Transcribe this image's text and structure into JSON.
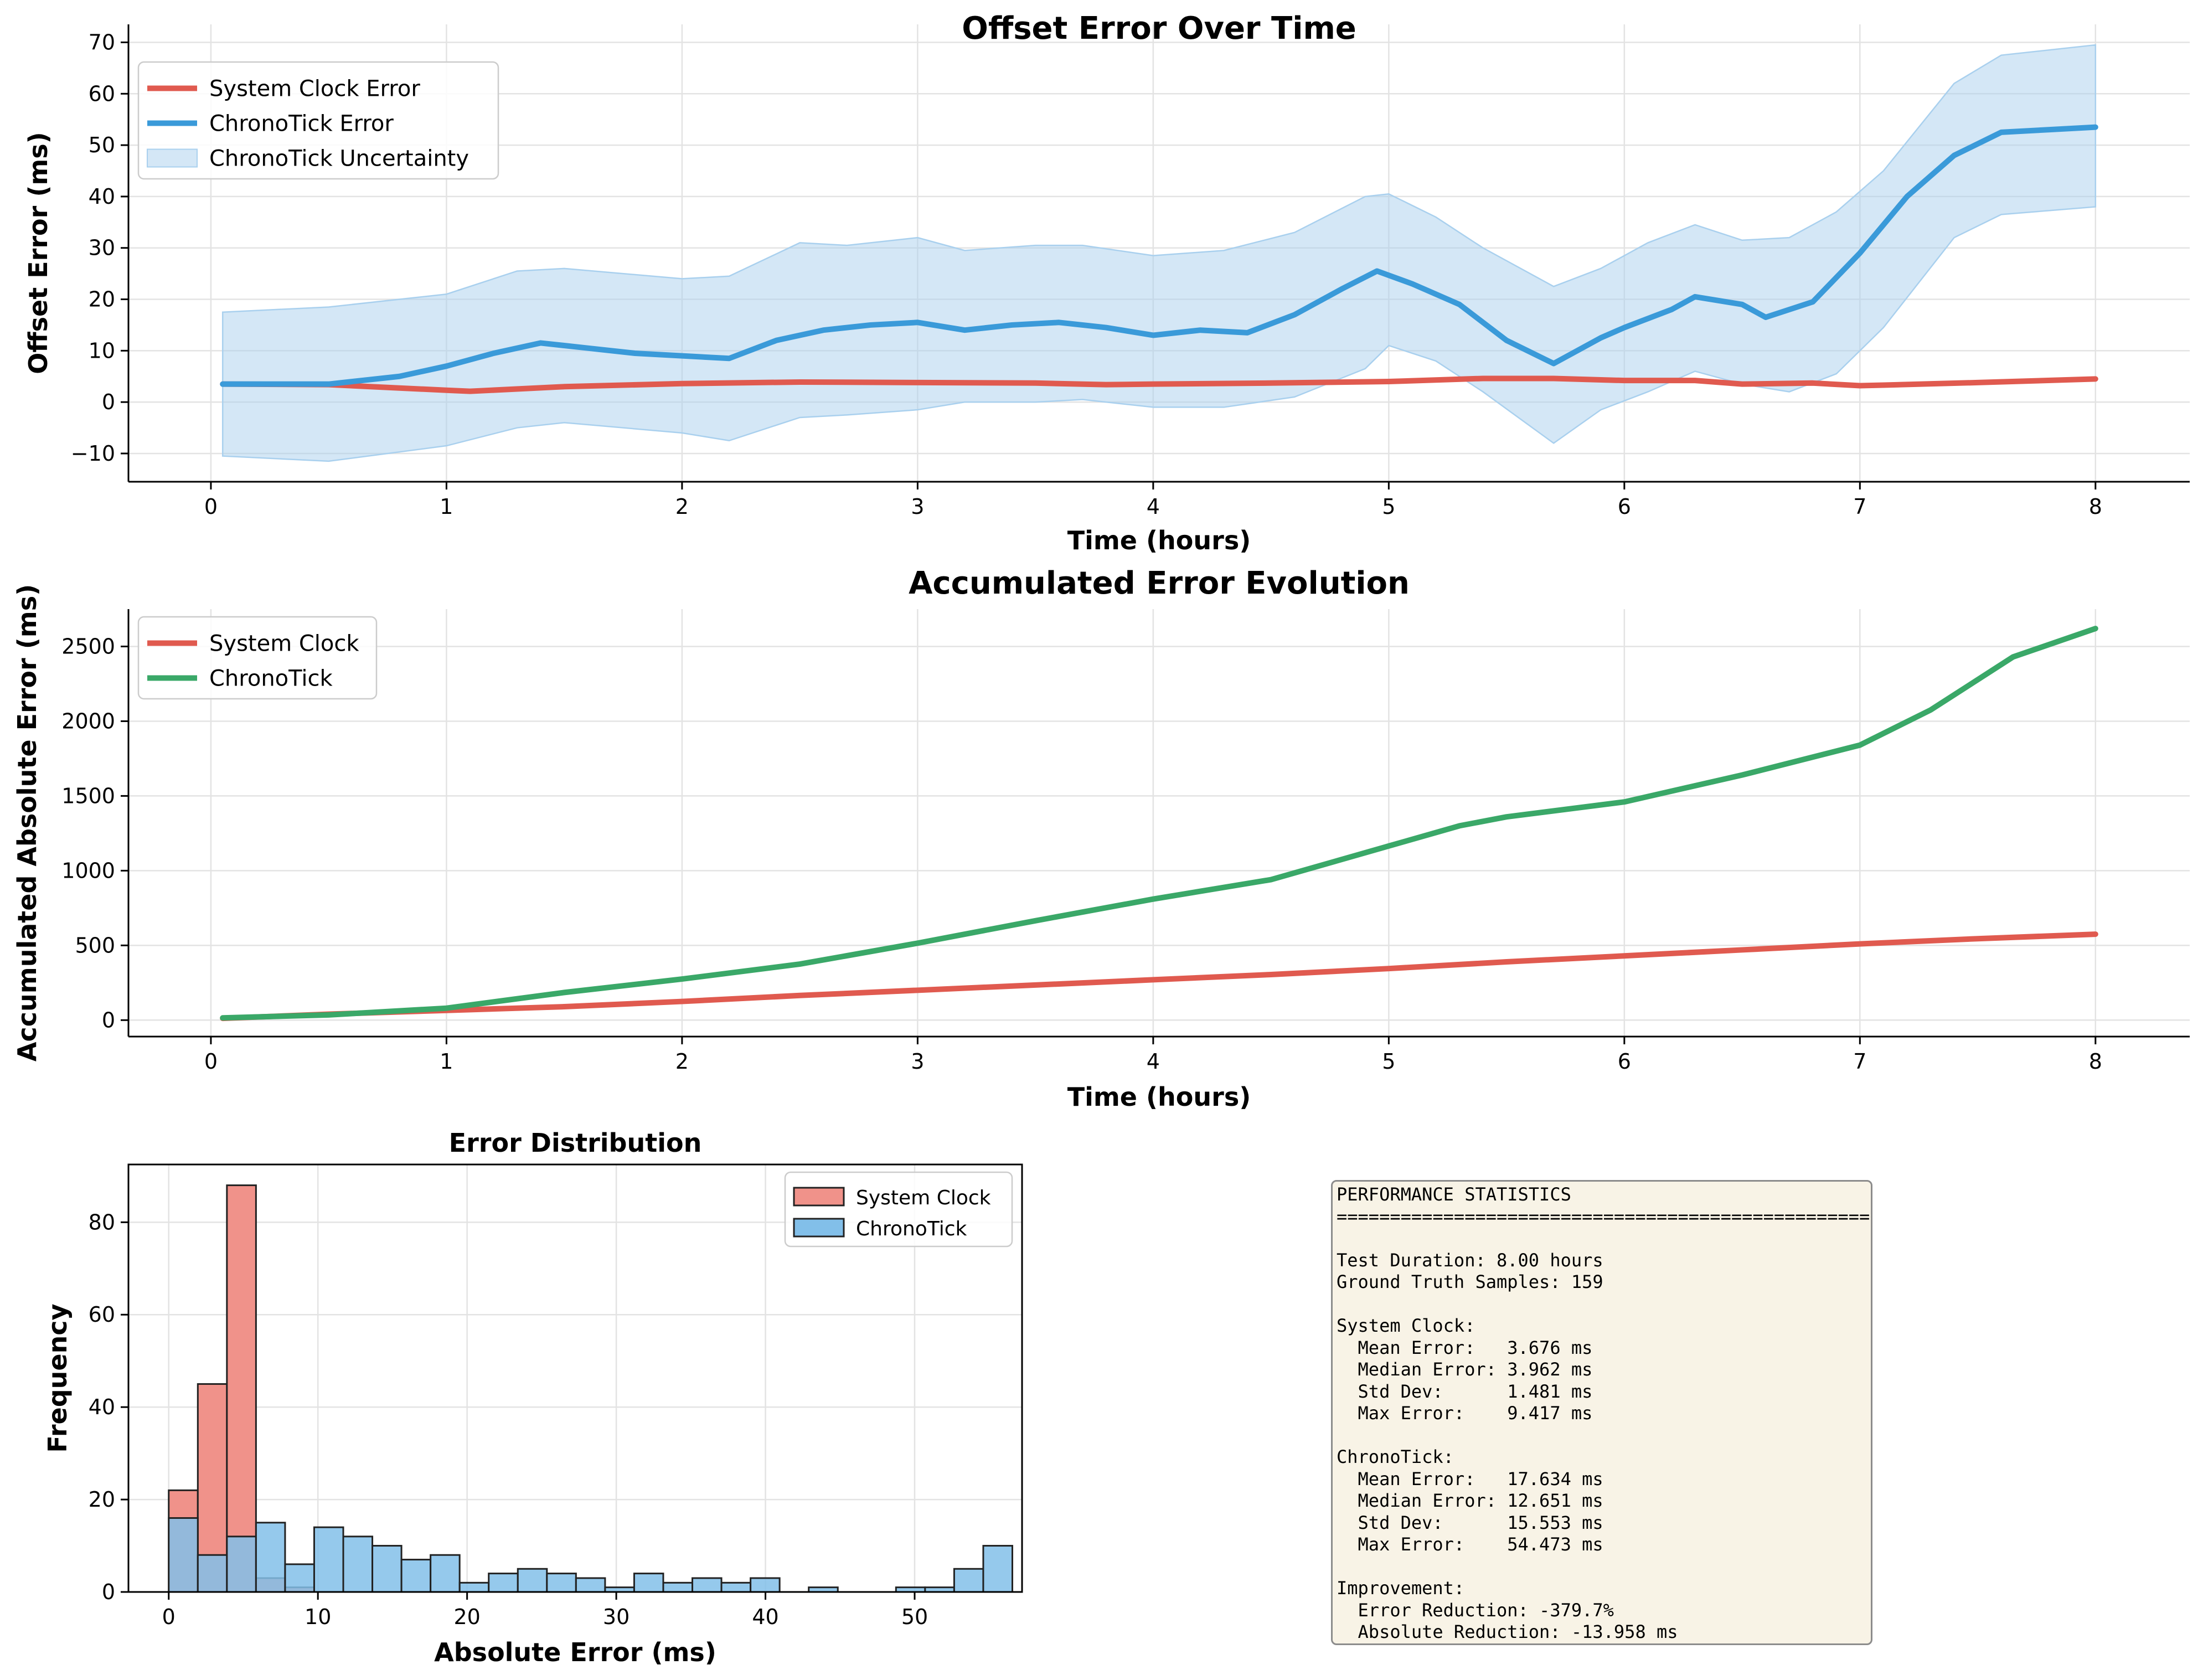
{
  "chart_data": [
    {
      "type": "line",
      "title": "Offset Error Over Time",
      "xlabel": "Time (hours)",
      "ylabel": "Offset Error (ms)",
      "xlim": [
        -0.35,
        8.4
      ],
      "ylim": [
        -15.5,
        73.5
      ],
      "xticks": [
        "0",
        "1",
        "2",
        "3",
        "4",
        "5",
        "6",
        "7",
        "8"
      ],
      "yticks": [
        "−10",
        "0",
        "10",
        "20",
        "30",
        "40",
        "50",
        "60",
        "70"
      ],
      "grid": true,
      "legend_position": "upper-left",
      "series": [
        {
          "name": "System Clock Error",
          "color": "#e05a4f",
          "x": [
            0.05,
            0.5,
            1.0,
            1.1,
            1.5,
            2.0,
            2.5,
            3.0,
            3.5,
            3.8,
            4.0,
            4.5,
            5.0,
            5.4,
            5.7,
            6.0,
            6.3,
            6.5,
            6.8,
            7.0,
            7.1,
            7.5,
            8.0
          ],
          "y": [
            3.5,
            3.4,
            2.3,
            2.1,
            3.0,
            3.6,
            3.9,
            3.8,
            3.7,
            3.4,
            3.5,
            3.7,
            4.0,
            4.6,
            4.6,
            4.2,
            4.2,
            3.5,
            3.7,
            3.2,
            3.3,
            3.8,
            4.5
          ]
        },
        {
          "name": "ChronoTick Error",
          "color": "#3a9ad9",
          "x": [
            0.05,
            0.5,
            0.8,
            1.0,
            1.2,
            1.4,
            1.6,
            1.8,
            2.0,
            2.2,
            2.4,
            2.6,
            2.8,
            3.0,
            3.2,
            3.4,
            3.6,
            3.8,
            4.0,
            4.2,
            4.4,
            4.6,
            4.8,
            4.95,
            5.1,
            5.3,
            5.5,
            5.7,
            5.9,
            6.0,
            6.2,
            6.3,
            6.5,
            6.6,
            6.8,
            7.0,
            7.2,
            7.4,
            7.6,
            7.8,
            8.0
          ],
          "y": [
            3.5,
            3.5,
            5.0,
            7.0,
            9.5,
            11.5,
            10.5,
            9.5,
            9.0,
            8.5,
            12.0,
            14.0,
            15.0,
            15.5,
            14.0,
            15.0,
            15.5,
            14.5,
            13.0,
            14.0,
            13.5,
            17.0,
            22.0,
            25.5,
            23.0,
            19.0,
            12.0,
            7.5,
            12.5,
            14.5,
            18.0,
            20.5,
            19.0,
            16.5,
            19.5,
            29.0,
            40.0,
            48.0,
            52.5,
            53.0,
            53.5
          ]
        },
        {
          "name": "ChronoTick Uncertainty",
          "type": "band",
          "color": "#a9d0ee",
          "x": [
            0.05,
            0.5,
            1.0,
            1.3,
            1.5,
            2.0,
            2.2,
            2.5,
            2.7,
            3.0,
            3.2,
            3.5,
            3.7,
            4.0,
            4.3,
            4.6,
            4.9,
            5.0,
            5.2,
            5.4,
            5.7,
            5.9,
            6.1,
            6.3,
            6.5,
            6.7,
            6.9,
            7.1,
            7.4,
            7.6,
            8.0
          ],
          "upper": [
            17.5,
            18.5,
            21.0,
            25.5,
            26.0,
            24.0,
            24.5,
            31.0,
            30.5,
            32.0,
            29.5,
            30.5,
            30.5,
            28.5,
            29.5,
            33.0,
            40.0,
            40.5,
            36.0,
            30.0,
            22.5,
            26.0,
            31.0,
            34.5,
            31.5,
            32.0,
            37.0,
            45.0,
            62.0,
            67.5,
            69.5
          ],
          "lower": [
            -10.5,
            -11.5,
            -8.5,
            -5.0,
            -4.0,
            -6.0,
            -7.5,
            -3.0,
            -2.5,
            -1.5,
            0.0,
            0.0,
            0.5,
            -1.0,
            -1.0,
            1.0,
            6.5,
            11.0,
            8.0,
            2.0,
            -8.0,
            -1.5,
            2.0,
            6.0,
            3.5,
            2.0,
            5.5,
            14.5,
            32.0,
            36.5,
            38.0
          ]
        }
      ]
    },
    {
      "type": "line",
      "title": "Accumulated Error Evolution",
      "xlabel": "Time (hours)",
      "ylabel": "Accumulated Absolute Error (ms)",
      "xlim": [
        -0.35,
        8.4
      ],
      "ylim": [
        -110,
        2750
      ],
      "xticks": [
        "0",
        "1",
        "2",
        "3",
        "4",
        "5",
        "6",
        "7",
        "8"
      ],
      "yticks": [
        "0",
        "500",
        "1000",
        "1500",
        "2000",
        "2500"
      ],
      "grid": true,
      "legend_position": "upper-left",
      "series": [
        {
          "name": "System Clock",
          "color": "#e05a4f",
          "x": [
            0.05,
            0.5,
            1.0,
            1.5,
            2.0,
            2.5,
            3.0,
            3.5,
            4.0,
            4.5,
            5.0,
            5.5,
            6.0,
            6.5,
            7.0,
            7.5,
            8.0
          ],
          "y": [
            12,
            40,
            65,
            90,
            125,
            165,
            200,
            235,
            270,
            305,
            345,
            390,
            430,
            470,
            510,
            545,
            575
          ]
        },
        {
          "name": "ChronoTick",
          "color": "#3aa868",
          "x": [
            0.05,
            0.5,
            1.0,
            1.5,
            2.0,
            2.5,
            3.0,
            3.5,
            4.0,
            4.5,
            5.0,
            5.3,
            5.5,
            6.0,
            6.5,
            7.0,
            7.3,
            7.65,
            8.0
          ],
          "y": [
            15,
            35,
            80,
            185,
            275,
            375,
            515,
            665,
            810,
            940,
            1165,
            1300,
            1360,
            1460,
            1640,
            1840,
            2075,
            2430,
            2620
          ]
        }
      ]
    },
    {
      "type": "bar",
      "title": "Error Distribution",
      "xlabel": "Absolute Error (ms)",
      "ylabel": "Frequency",
      "xlim": [
        -2.7,
        57.2
      ],
      "ylim": [
        0,
        92.5
      ],
      "xticks": [
        "0",
        "10",
        "20",
        "30",
        "40",
        "50"
      ],
      "yticks": [
        "0",
        "20",
        "40",
        "60",
        "80"
      ],
      "grid": true,
      "legend_position": "upper-right",
      "series": [
        {
          "name": "System Clock",
          "color": "#f0928a",
          "bin_width": 1.95,
          "bin_start": 0.0,
          "values": [
            22,
            45,
            88,
            3,
            1
          ]
        },
        {
          "name": "ChronoTick",
          "color": "#82bfe9",
          "bin_width": 1.95,
          "bin_start": 0.0,
          "values": [
            16,
            8,
            12,
            15,
            6,
            14,
            12,
            10,
            7,
            8,
            2,
            4,
            5,
            4,
            3,
            1,
            4,
            2,
            3,
            2,
            3,
            0,
            1,
            0,
            0,
            1,
            1,
            5,
            10
          ]
        }
      ]
    }
  ],
  "stats_panel": {
    "heading": "PERFORMANCE STATISTICS",
    "separator": "==================================================",
    "lines": [
      "",
      "Test Duration: 8.00 hours",
      "Ground Truth Samples: 159",
      "",
      "System Clock:",
      "  Mean Error:   3.676 ms",
      "  Median Error: 3.962 ms",
      "  Std Dev:      1.481 ms",
      "  Max Error:    9.417 ms",
      "",
      "ChronoTick:",
      "  Mean Error:   17.634 ms",
      "  Median Error: 12.651 ms",
      "  Std Dev:      15.553 ms",
      "  Max Error:    54.473 ms",
      "",
      "Improvement:",
      "  Error Reduction: -379.7%",
      "  Absolute Reduction: -13.958 ms"
    ],
    "background": "#f8f3e6"
  }
}
